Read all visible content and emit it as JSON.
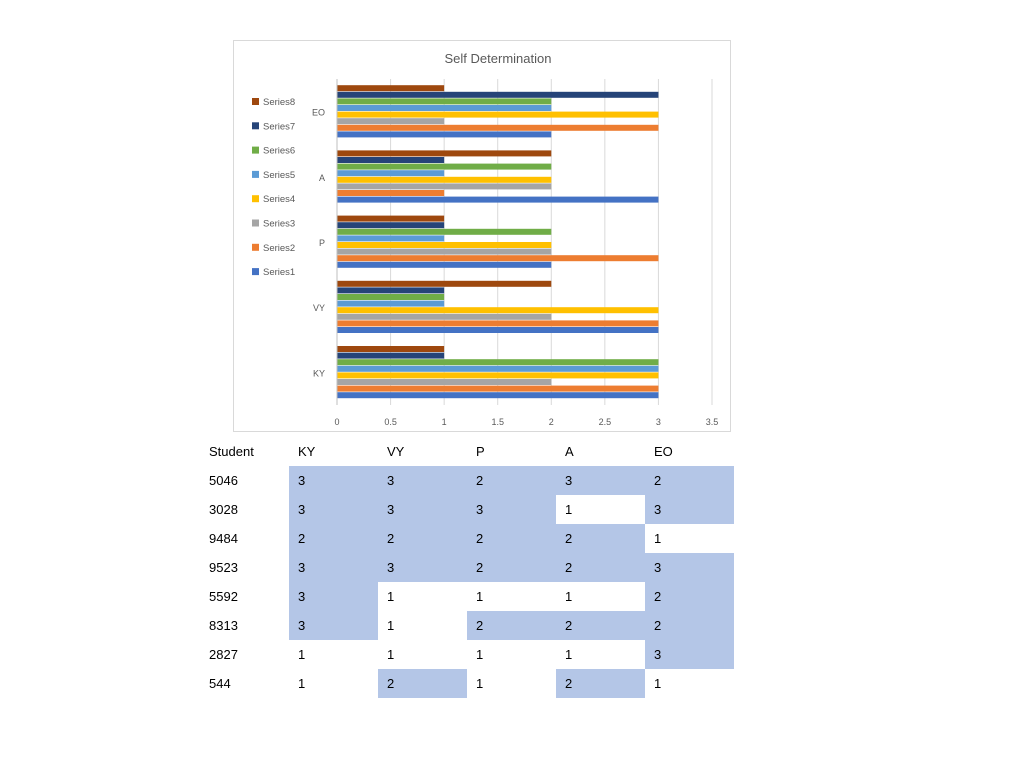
{
  "chart_data": {
    "type": "bar",
    "orientation": "horizontal",
    "title": "Self Determination",
    "categories": [
      "KY",
      "VY",
      "P",
      "A",
      "EO"
    ],
    "series": [
      {
        "name": "Series1",
        "color": "#4472c4",
        "values": [
          3,
          3,
          2,
          3,
          2
        ]
      },
      {
        "name": "Series2",
        "color": "#ed7d31",
        "values": [
          3,
          3,
          3,
          1,
          3
        ]
      },
      {
        "name": "Series3",
        "color": "#a5a5a5",
        "values": [
          2,
          2,
          2,
          2,
          1
        ]
      },
      {
        "name": "Series4",
        "color": "#ffc000",
        "values": [
          3,
          3,
          2,
          2,
          3
        ]
      },
      {
        "name": "Series5",
        "color": "#5b9bd5",
        "values": [
          3,
          1,
          1,
          1,
          2
        ]
      },
      {
        "name": "Series6",
        "color": "#70ad47",
        "values": [
          3,
          1,
          2,
          2,
          2
        ]
      },
      {
        "name": "Series7",
        "color": "#264478",
        "values": [
          1,
          1,
          1,
          1,
          3
        ]
      },
      {
        "name": "Series8",
        "color": "#9e480e",
        "values": [
          1,
          2,
          1,
          2,
          1
        ]
      }
    ],
    "xlim": [
      0,
      3.5
    ],
    "xticks": [
      "0",
      "0.5",
      "1",
      "1.5",
      "2",
      "2.5",
      "3",
      "3.5"
    ],
    "grid": "vertical",
    "legend_position": "left"
  },
  "table": {
    "headers": [
      "Student",
      "KY",
      "VY",
      "P",
      "A",
      "EO"
    ],
    "rows": [
      {
        "student": "5046",
        "values": [
          "3",
          "3",
          "2",
          "3",
          "2"
        ],
        "highlight": [
          true,
          true,
          true,
          true,
          true
        ]
      },
      {
        "student": "3028",
        "values": [
          "3",
          "3",
          "3",
          "1",
          "3"
        ],
        "highlight": [
          true,
          true,
          true,
          false,
          true
        ]
      },
      {
        "student": "9484",
        "values": [
          "2",
          "2",
          "2",
          "2",
          "1"
        ],
        "highlight": [
          true,
          true,
          true,
          true,
          false
        ]
      },
      {
        "student": "9523",
        "values": [
          "3",
          "3",
          "2",
          "2",
          "3"
        ],
        "highlight": [
          true,
          true,
          true,
          true,
          true
        ]
      },
      {
        "student": "5592",
        "values": [
          "3",
          "1",
          "1",
          "1",
          "2"
        ],
        "highlight": [
          true,
          false,
          false,
          false,
          true
        ]
      },
      {
        "student": "8313",
        "values": [
          "3",
          "1",
          "2",
          "2",
          "2"
        ],
        "highlight": [
          true,
          false,
          true,
          true,
          true
        ]
      },
      {
        "student": "2827",
        "values": [
          "1",
          "1",
          "1",
          "1",
          "3"
        ],
        "highlight": [
          false,
          false,
          false,
          false,
          true
        ]
      },
      {
        "student": "544",
        "values": [
          "1",
          "2",
          "1",
          "2",
          "1"
        ],
        "highlight": [
          false,
          true,
          false,
          true,
          false
        ]
      }
    ],
    "highlight_color": "#b4c6e7"
  }
}
